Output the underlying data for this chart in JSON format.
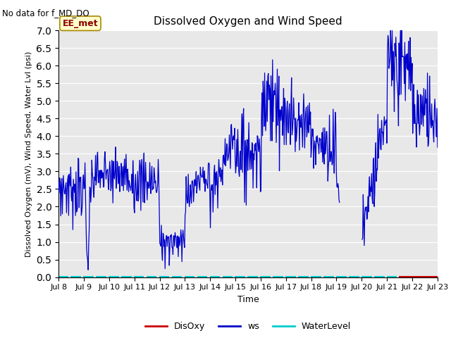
{
  "title": "Dissolved Oxygen and Wind Speed",
  "top_left_text": "No data for f_MD_DO",
  "annotation_box_text": "EE_met",
  "xlabel": "Time",
  "ylabel": "Dissolved Oxygen (mV), Wind Speed, Water Lvl (psi)",
  "ylim": [
    0.0,
    7.0
  ],
  "yticks": [
    0.0,
    0.5,
    1.0,
    1.5,
    2.0,
    2.5,
    3.0,
    3.5,
    4.0,
    4.5,
    5.0,
    5.5,
    6.0,
    6.5,
    7.0
  ],
  "xticklabels": [
    "Jul 8",
    "Jul 9",
    "Jul 10",
    "Jul 11",
    "Jul 12",
    "Jul 13",
    "Jul 14",
    "Jul 15",
    "Jul 16",
    "Jul 17",
    "Jul 18",
    "Jul 19",
    "Jul 20",
    "Jul 21",
    "Jul 22",
    "Jul 23"
  ],
  "bg_color": "#e8e8e8",
  "ws_color": "#0000cc",
  "disoxy_color": "#cc0000",
  "waterlevel_color": "#00cccc",
  "legend_labels": [
    "DisOxy",
    "ws",
    "WaterLevel"
  ],
  "legend_colors": [
    "#cc0000",
    "#0000cc",
    "#00cccc"
  ],
  "figsize": [
    6.4,
    4.8
  ],
  "dpi": 100
}
